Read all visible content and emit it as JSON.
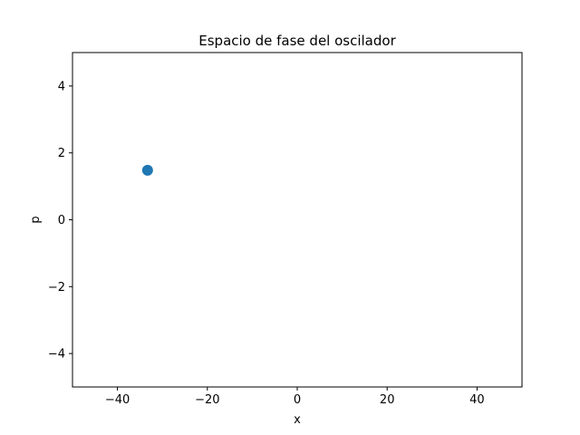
{
  "chart_data": {
    "type": "scatter",
    "title": "Espacio de fase del oscilador",
    "xlabel": "x",
    "ylabel": "p",
    "xlim": [
      -50,
      50
    ],
    "ylim": [
      -5,
      5
    ],
    "xticks": [
      -40,
      -20,
      0,
      20,
      40
    ],
    "xtick_labels": [
      "−40",
      "−20",
      "0",
      "20",
      "40"
    ],
    "yticks": [
      -4,
      -2,
      0,
      2,
      4
    ],
    "ytick_labels": [
      "−4",
      "−2",
      "0",
      "2",
      "4"
    ],
    "grid": false,
    "series": [
      {
        "color": "#1f77b4",
        "points": [
          {
            "x": -33.3,
            "y": 1.48
          }
        ]
      }
    ]
  }
}
